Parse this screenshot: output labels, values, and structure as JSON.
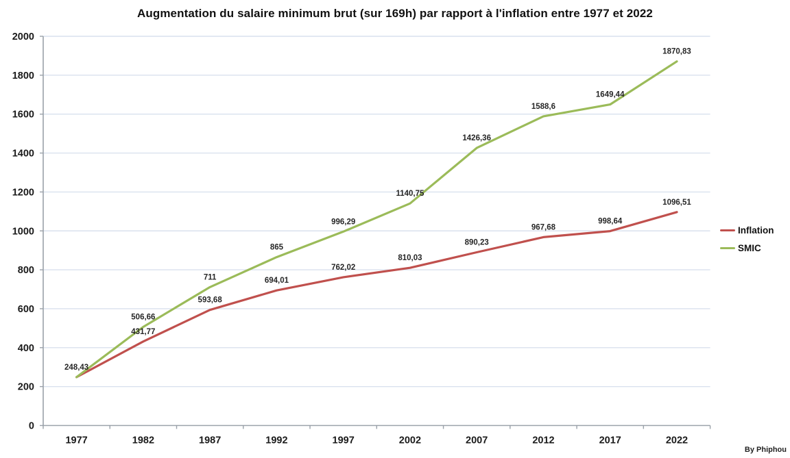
{
  "title": "Augmentation du salaire minimum brut (sur 169h) par rapport à l'inflation entre 1977 et 2022",
  "credit": "By Phiphou",
  "chart_data": {
    "type": "line",
    "title": "Augmentation du salaire minimum brut (sur 169h) par rapport à l'inflation entre 1977 et 2022",
    "categories": [
      "1977",
      "1982",
      "1987",
      "1992",
      "1997",
      "2002",
      "2007",
      "2012",
      "2017",
      "2022"
    ],
    "series": [
      {
        "name": "Inflation",
        "color": "#c0504d",
        "values": [
          248.43,
          431.77,
          593.68,
          694.01,
          762.02,
          810.03,
          890.23,
          967.68,
          998.64,
          1096.51
        ],
        "labels": [
          "248,43",
          "431,77",
          "593,68",
          "694,01",
          "762,02",
          "810,03",
          "890,23",
          "967,68",
          "998,64",
          "1096,51"
        ]
      },
      {
        "name": "SMIC",
        "color": "#9bbb59",
        "values": [
          248.43,
          506.66,
          711,
          865,
          996.29,
          1140.75,
          1426.36,
          1588.6,
          1649.44,
          1870.83
        ],
        "labels": [
          "",
          "506,66",
          "711",
          "865",
          "996,29",
          "1140,75",
          "1426,36",
          "1588,6",
          "1649,44",
          "1870,83"
        ]
      }
    ],
    "xlabel": "",
    "ylabel": "",
    "ylim": [
      0,
      2000
    ],
    "ytick_step": 200,
    "grid": "horizontal",
    "legend_position": "right"
  },
  "colors": {
    "grid": "#d9e1ee",
    "axis": "#9aa1a9",
    "tick_text": "#1a1a1a",
    "data_label_text": "#262626",
    "background": "#ffffff"
  }
}
